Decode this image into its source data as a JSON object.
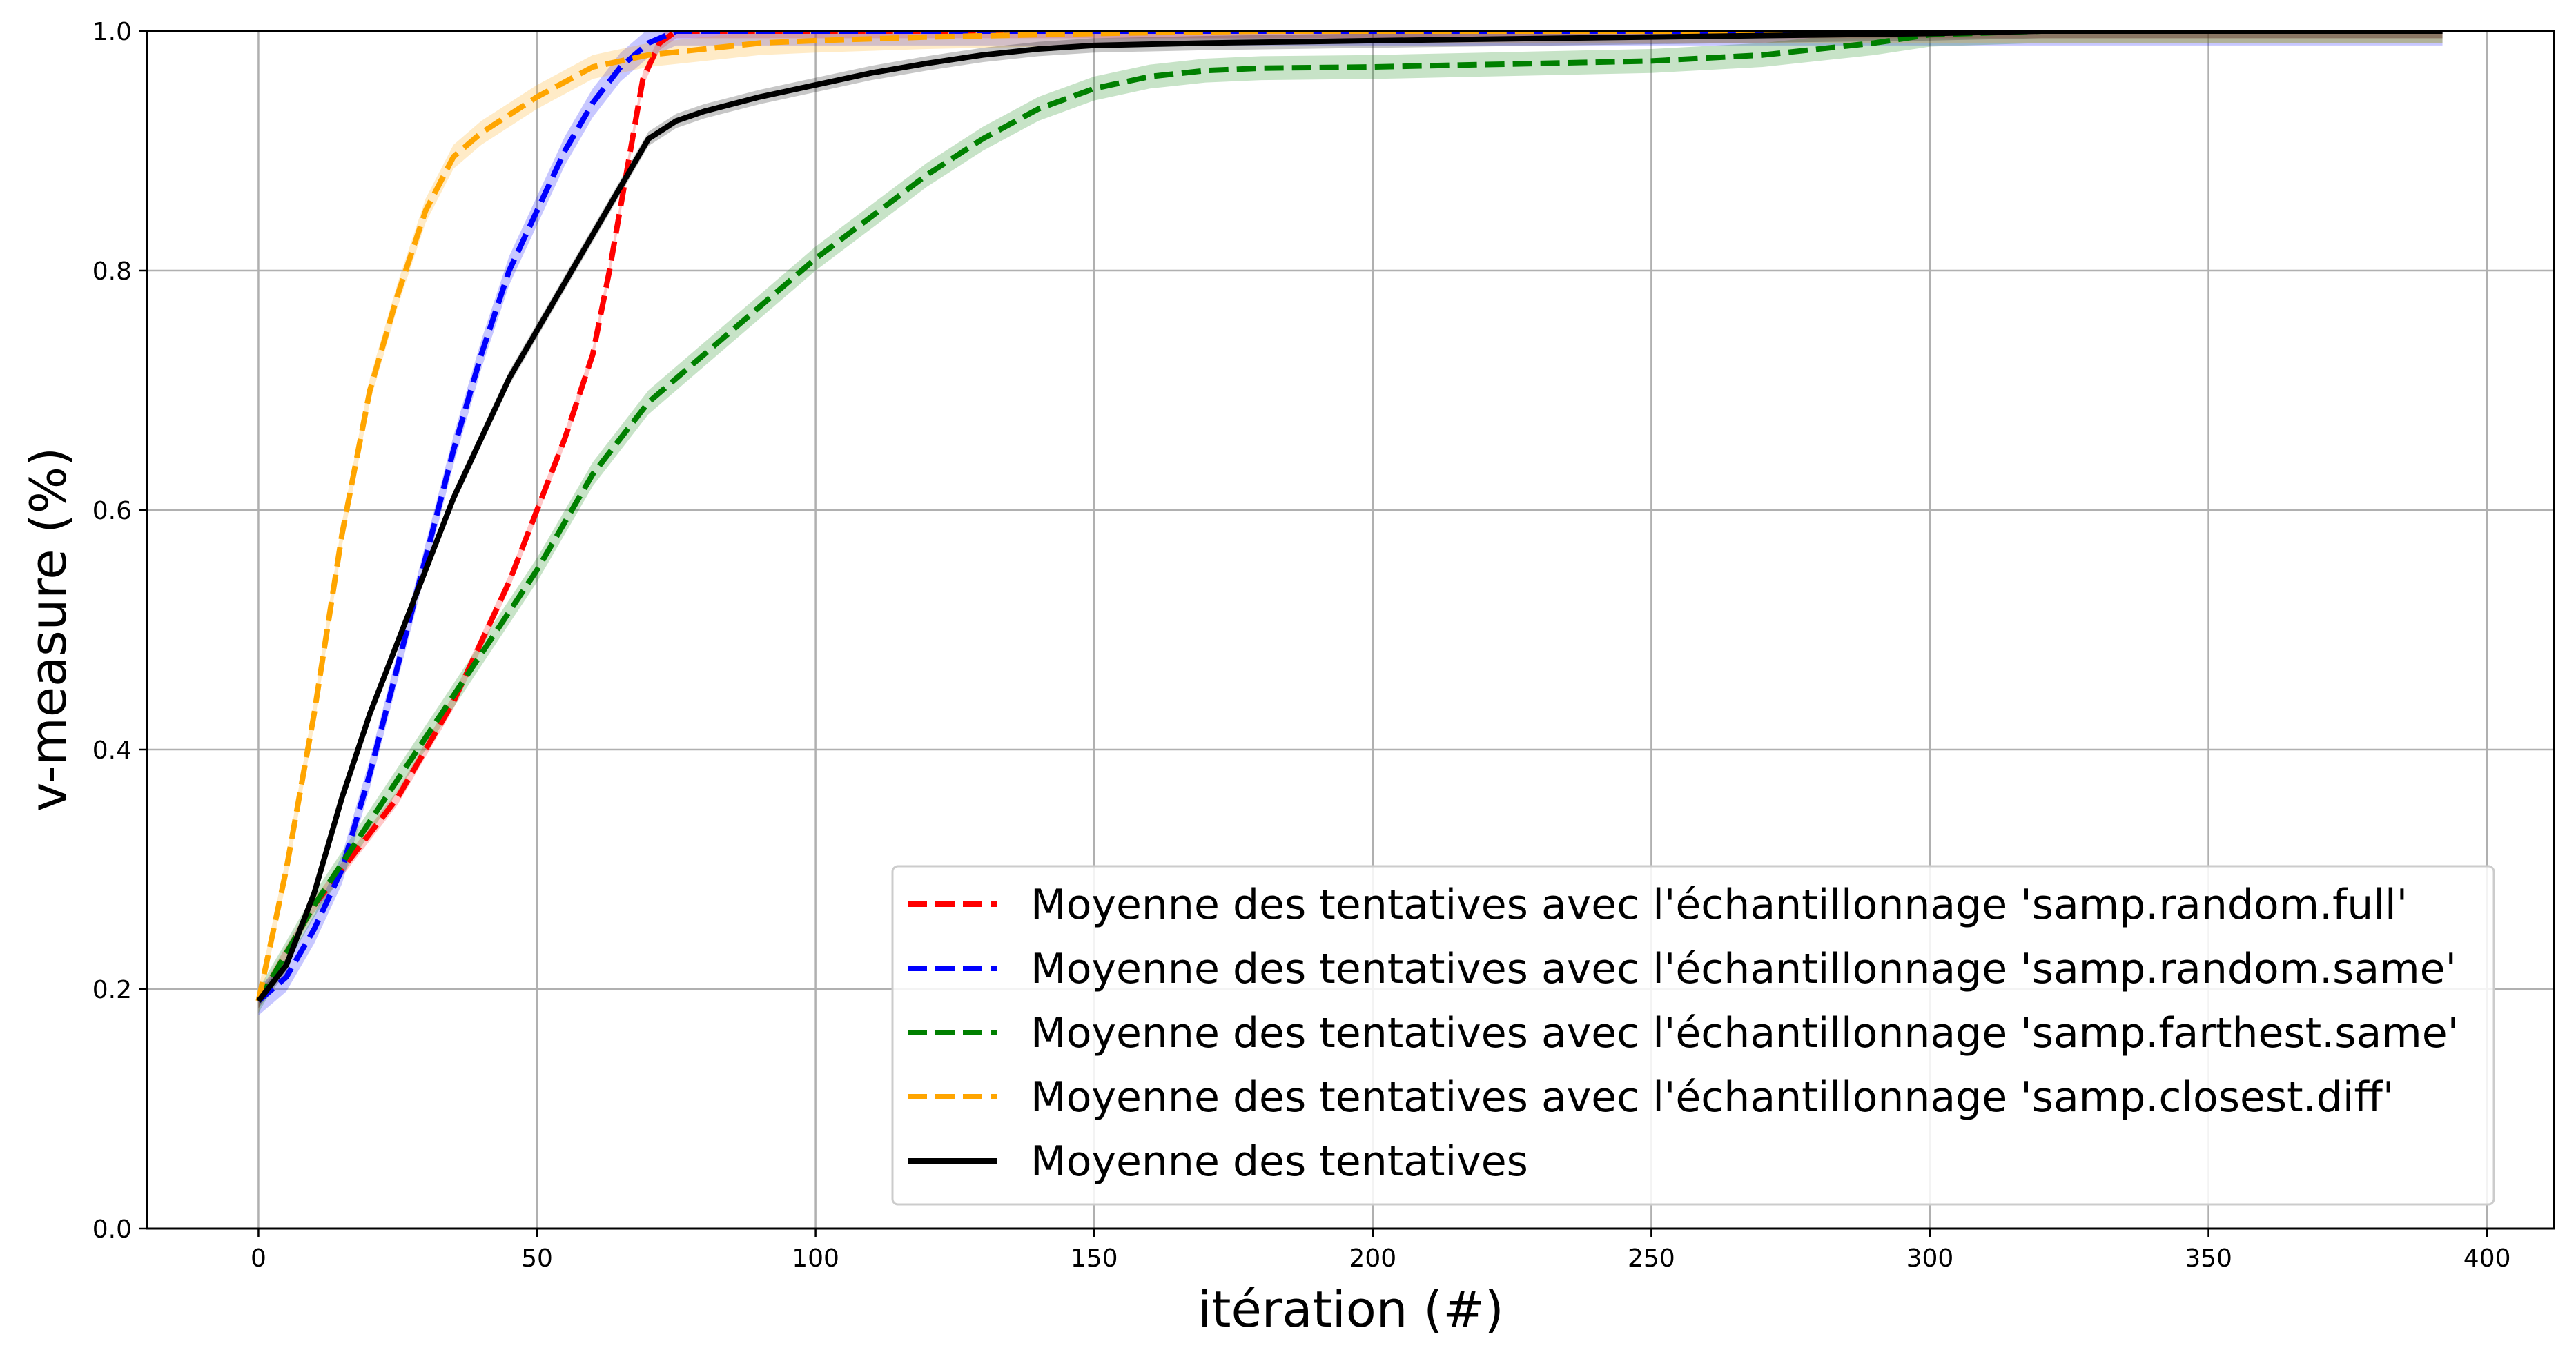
{
  "chart_data": {
    "type": "line",
    "title": "",
    "xlabel": "itération (#)",
    "ylabel": "v-measure (%)",
    "xlim": [
      -20,
      412
    ],
    "ylim": [
      0.0,
      1.0
    ],
    "xticks": [
      0,
      50,
      100,
      150,
      200,
      250,
      300,
      350,
      400
    ],
    "yticks": [
      0.0,
      0.2,
      0.4,
      0.6,
      0.8,
      1.0
    ],
    "ytick_labels": [
      "0.0",
      "0.2",
      "0.4",
      "0.6",
      "0.8",
      "1.0"
    ],
    "grid": true,
    "legend_position": "lower-right",
    "series": [
      {
        "name": "Moyenne des tentatives avec l'échantillonnage 'samp.random.full'",
        "color": "#ff0000",
        "style": "dashed",
        "band": 0.006,
        "x": [
          0,
          5,
          10,
          15,
          20,
          25,
          30,
          35,
          40,
          45,
          50,
          55,
          60,
          63,
          66,
          69,
          72,
          75,
          80,
          100,
          200,
          300,
          392
        ],
        "y": [
          0.19,
          0.23,
          0.27,
          0.3,
          0.33,
          0.36,
          0.4,
          0.44,
          0.49,
          0.54,
          0.6,
          0.66,
          0.73,
          0.8,
          0.88,
          0.96,
          0.99,
          1.0,
          1.0,
          1.0,
          1.0,
          1.0,
          1.0
        ]
      },
      {
        "name": "Moyenne des tentatives avec l'échantillonnage 'samp.random.same'",
        "color": "#0000ff",
        "style": "dashed",
        "band": 0.012,
        "x": [
          0,
          5,
          10,
          15,
          20,
          25,
          30,
          35,
          40,
          45,
          50,
          55,
          60,
          65,
          70,
          75,
          80,
          100,
          200,
          300,
          392
        ],
        "y": [
          0.19,
          0.21,
          0.25,
          0.3,
          0.38,
          0.47,
          0.56,
          0.65,
          0.73,
          0.8,
          0.85,
          0.9,
          0.94,
          0.97,
          0.99,
          1.0,
          1.0,
          1.0,
          1.0,
          1.0,
          1.0
        ]
      },
      {
        "name": "Moyenne des tentatives avec l'échantillonnage 'samp.farthest.same'",
        "color": "#008000",
        "style": "dashed",
        "band": 0.01,
        "x": [
          0,
          10,
          20,
          30,
          40,
          50,
          60,
          70,
          80,
          90,
          100,
          110,
          120,
          130,
          140,
          150,
          160,
          170,
          180,
          200,
          220,
          250,
          270,
          290,
          300,
          320,
          392
        ],
        "y": [
          0.19,
          0.27,
          0.34,
          0.41,
          0.48,
          0.55,
          0.63,
          0.69,
          0.73,
          0.77,
          0.81,
          0.845,
          0.88,
          0.91,
          0.935,
          0.952,
          0.962,
          0.967,
          0.969,
          0.97,
          0.972,
          0.975,
          0.98,
          0.99,
          0.997,
          1.0,
          1.0
        ]
      },
      {
        "name": "Moyenne des tentatives avec l'échantillonnage 'samp.closest.diff'",
        "color": "#ffa500",
        "style": "dashed",
        "band": 0.01,
        "x": [
          0,
          5,
          10,
          15,
          20,
          25,
          30,
          35,
          40,
          50,
          60,
          70,
          80,
          90,
          100,
          120,
          150,
          180,
          200,
          300,
          392
        ],
        "y": [
          0.19,
          0.3,
          0.43,
          0.58,
          0.7,
          0.78,
          0.85,
          0.895,
          0.915,
          0.945,
          0.97,
          0.98,
          0.985,
          0.99,
          0.992,
          0.995,
          0.998,
          1.0,
          1.0,
          1.0,
          1.0
        ]
      },
      {
        "name": "Moyenne des tentatives",
        "color": "#000000",
        "style": "solid",
        "band": 0.006,
        "x": [
          0,
          5,
          10,
          15,
          20,
          25,
          30,
          35,
          40,
          45,
          50,
          55,
          60,
          65,
          70,
          75,
          80,
          90,
          100,
          110,
          120,
          130,
          140,
          150,
          170,
          200,
          250,
          300,
          320,
          392
        ],
        "y": [
          0.19,
          0.22,
          0.28,
          0.36,
          0.43,
          0.49,
          0.55,
          0.61,
          0.66,
          0.71,
          0.75,
          0.79,
          0.83,
          0.87,
          0.91,
          0.925,
          0.933,
          0.945,
          0.955,
          0.965,
          0.973,
          0.98,
          0.985,
          0.988,
          0.99,
          0.992,
          0.995,
          0.998,
          1.0,
          1.0
        ]
      }
    ]
  }
}
